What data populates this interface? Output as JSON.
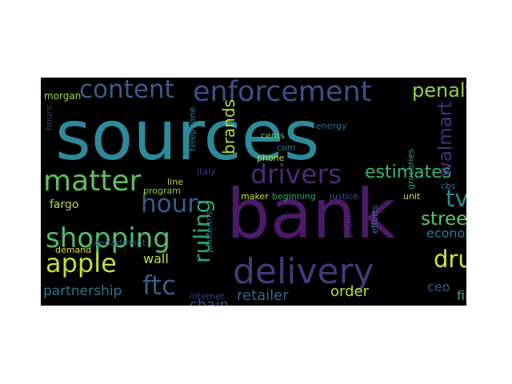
{
  "wordcloud": {
    "background": "#000000",
    "words": [
      {
        "text": "sources",
        "color": "#2e8a9a"
      },
      {
        "text": "bank",
        "color": "#4b1a68"
      },
      {
        "text": "delivery",
        "color": "#433a7a"
      },
      {
        "text": "enforcement",
        "color": "#3f4f8a"
      },
      {
        "text": "content",
        "color": "#3e5a8a"
      },
      {
        "text": "drivers",
        "color": "#4a2a76"
      },
      {
        "text": "matter",
        "color": "#5ec05a"
      },
      {
        "text": "shopping",
        "color": "#4fc06a"
      },
      {
        "text": "apple",
        "color": "#c6de3a"
      },
      {
        "text": "ftc",
        "color": "#3b5a8c"
      },
      {
        "text": "hour",
        "color": "#365c8d"
      },
      {
        "text": "ruling",
        "color": "#2ea47e"
      },
      {
        "text": "drug",
        "color": "#d6e23a"
      },
      {
        "text": "penalty",
        "color": "#8fd24a"
      },
      {
        "text": "estimates",
        "color": "#35b57a"
      },
      {
        "text": "street",
        "color": "#5ec962"
      },
      {
        "text": "tv",
        "color": "#2c8c8c"
      },
      {
        "text": "walmart",
        "color": "#46327e"
      },
      {
        "text": "brands",
        "color": "#b5de2b"
      },
      {
        "text": "partnership",
        "color": "#2a788e"
      },
      {
        "text": "chain",
        "color": "#3b528b"
      },
      {
        "text": "retailer",
        "color": "#31688e"
      },
      {
        "text": "order",
        "color": "#b8de3a"
      },
      {
        "text": "wall",
        "color": "#c9e03a"
      },
      {
        "text": "economy",
        "color": "#2a7a8e"
      },
      {
        "text": "fargo",
        "color": "#b8d844"
      },
      {
        "text": "firm",
        "color": "#32a87c"
      },
      {
        "text": "ceo",
        "color": "#3a5a8a"
      },
      {
        "text": "morgan",
        "color": "#a0d84a"
      },
      {
        "text": "hours",
        "color": "#3a3c78"
      },
      {
        "text": "telephone",
        "color": "#2d7c8c"
      },
      {
        "text": "groceries",
        "color": "#2f9c88"
      },
      {
        "text": "efforts",
        "color": "#26828e"
      },
      {
        "text": "profit",
        "color": "#482576"
      },
      {
        "text": "energy",
        "color": "#2b6f8e"
      },
      {
        "text": "cents",
        "color": "#60c260"
      },
      {
        "text": "com",
        "color": "#2d708e"
      },
      {
        "text": "phone",
        "color": "#b7dd40"
      },
      {
        "text": "maker",
        "color": "#c6e03a"
      },
      {
        "text": "beginning",
        "color": "#33a37f"
      },
      {
        "text": "justice",
        "color": "#3b5289"
      },
      {
        "text": "unit",
        "color": "#c8e035"
      },
      {
        "text": "cbs",
        "color": "#2f6e8d"
      },
      {
        "text": "line",
        "color": "#b0da45"
      },
      {
        "text": "program",
        "color": "#88d54a"
      },
      {
        "text": "italy",
        "color": "#443983"
      },
      {
        "text": "department",
        "color": "#3d4e8a"
      },
      {
        "text": "demand",
        "color": "#e0e43a"
      },
      {
        "text": "platforms",
        "color": "#2a6c8e"
      },
      {
        "text": "internet",
        "color": "#403b7e"
      }
    ]
  }
}
